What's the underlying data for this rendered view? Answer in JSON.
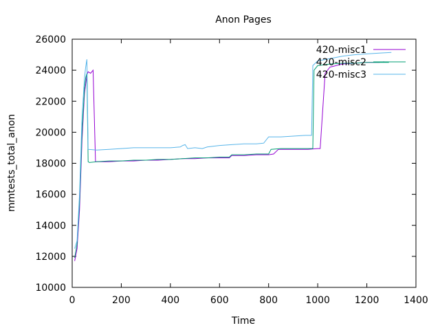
{
  "chart_data": {
    "type": "line",
    "title": "Anon Pages",
    "xlabel": "Time",
    "ylabel": "mmtests_total_anon",
    "xlim": [
      0,
      1400
    ],
    "ylim": [
      10000,
      26000
    ],
    "xticks": [
      0,
      200,
      400,
      600,
      800,
      1000,
      1200,
      1400
    ],
    "yticks": [
      10000,
      12000,
      14000,
      16000,
      18000,
      20000,
      22000,
      24000,
      26000
    ],
    "xtick_labels": [
      "0",
      "200",
      "400",
      "600",
      "800",
      "1000",
      "1200",
      "1400"
    ],
    "ytick_labels": [
      "10000",
      "12000",
      "14000",
      "16000",
      "18000",
      "20000",
      "22000",
      "24000",
      "26000"
    ],
    "grid": false,
    "legend": "top-right",
    "series": [
      {
        "name": "420-misc1",
        "color": "#9400d3",
        "points": [
          [
            10,
            11700
          ],
          [
            20,
            12500
          ],
          [
            30,
            15000
          ],
          [
            40,
            19500
          ],
          [
            50,
            22500
          ],
          [
            60,
            23700
          ],
          [
            65,
            23900
          ],
          [
            75,
            23800
          ],
          [
            85,
            24000
          ],
          [
            95,
            18100
          ],
          [
            100,
            18100
          ],
          [
            150,
            18100
          ],
          [
            200,
            18150
          ],
          [
            250,
            18150
          ],
          [
            300,
            18200
          ],
          [
            350,
            18200
          ],
          [
            400,
            18250
          ],
          [
            450,
            18300
          ],
          [
            500,
            18300
          ],
          [
            550,
            18350
          ],
          [
            600,
            18350
          ],
          [
            640,
            18350
          ],
          [
            650,
            18500
          ],
          [
            700,
            18500
          ],
          [
            750,
            18550
          ],
          [
            800,
            18550
          ],
          [
            820,
            18600
          ],
          [
            840,
            18900
          ],
          [
            880,
            18900
          ],
          [
            920,
            18900
          ],
          [
            960,
            18900
          ],
          [
            1000,
            18950
          ],
          [
            1010,
            18950
          ],
          [
            1030,
            23800
          ],
          [
            1050,
            24200
          ],
          [
            1100,
            24400
          ],
          [
            1150,
            24450
          ],
          [
            1200,
            24500
          ],
          [
            1250,
            24500
          ],
          [
            1270,
            24550
          ]
        ]
      },
      {
        "name": "420-misc2",
        "color": "#009e73",
        "points": [
          [
            10,
            11900
          ],
          [
            20,
            12800
          ],
          [
            30,
            15500
          ],
          [
            40,
            20000
          ],
          [
            50,
            22800
          ],
          [
            55,
            23500
          ],
          [
            60,
            23800
          ],
          [
            65,
            18100
          ],
          [
            70,
            18050
          ],
          [
            100,
            18100
          ],
          [
            150,
            18150
          ],
          [
            200,
            18150
          ],
          [
            250,
            18200
          ],
          [
            300,
            18200
          ],
          [
            350,
            18250
          ],
          [
            400,
            18250
          ],
          [
            450,
            18300
          ],
          [
            500,
            18350
          ],
          [
            550,
            18350
          ],
          [
            600,
            18400
          ],
          [
            640,
            18400
          ],
          [
            650,
            18550
          ],
          [
            700,
            18550
          ],
          [
            750,
            18600
          ],
          [
            780,
            18600
          ],
          [
            800,
            18600
          ],
          [
            810,
            18900
          ],
          [
            850,
            18950
          ],
          [
            900,
            18950
          ],
          [
            950,
            18950
          ],
          [
            980,
            18950
          ],
          [
            985,
            24000
          ],
          [
            1000,
            24300
          ],
          [
            1050,
            24400
          ],
          [
            1100,
            24450
          ],
          [
            1150,
            24450
          ],
          [
            1200,
            24500
          ],
          [
            1250,
            24500
          ],
          [
            1290,
            24500
          ]
        ]
      },
      {
        "name": "420-misc3",
        "color": "#56b4e9",
        "points": [
          [
            10,
            12500
          ],
          [
            20,
            13000
          ],
          [
            30,
            16000
          ],
          [
            40,
            21000
          ],
          [
            50,
            23500
          ],
          [
            55,
            24200
          ],
          [
            60,
            24700
          ],
          [
            65,
            18900
          ],
          [
            100,
            18850
          ],
          [
            150,
            18900
          ],
          [
            200,
            18950
          ],
          [
            250,
            19000
          ],
          [
            300,
            19000
          ],
          [
            350,
            19000
          ],
          [
            400,
            19000
          ],
          [
            440,
            19050
          ],
          [
            450,
            19150
          ],
          [
            460,
            19200
          ],
          [
            470,
            18950
          ],
          [
            500,
            19000
          ],
          [
            530,
            18950
          ],
          [
            550,
            19050
          ],
          [
            600,
            19150
          ],
          [
            650,
            19200
          ],
          [
            700,
            19250
          ],
          [
            750,
            19250
          ],
          [
            780,
            19300
          ],
          [
            800,
            19700
          ],
          [
            850,
            19700
          ],
          [
            900,
            19750
          ],
          [
            950,
            19800
          ],
          [
            975,
            19800
          ],
          [
            980,
            24300
          ],
          [
            1000,
            24600
          ],
          [
            1050,
            24750
          ],
          [
            1100,
            24900
          ],
          [
            1150,
            25000
          ],
          [
            1200,
            25050
          ],
          [
            1250,
            25100
          ],
          [
            1300,
            25150
          ]
        ]
      }
    ]
  }
}
